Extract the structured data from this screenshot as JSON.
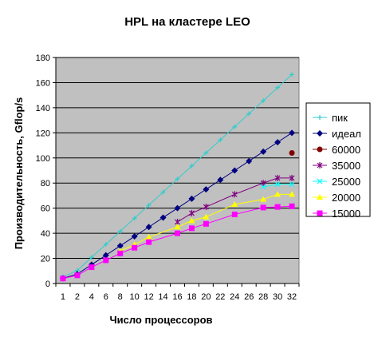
{
  "chart_data": {
    "type": "line",
    "title": "HPL на кластере LEO",
    "xlabel": "Число процессоров",
    "ylabel": "Производительность, Gflop/s",
    "ylim": [
      0,
      180
    ],
    "yticks": [
      0,
      20,
      40,
      60,
      80,
      100,
      120,
      140,
      160,
      180
    ],
    "categories": [
      "1",
      "2",
      "4",
      "6",
      "8",
      "10",
      "12",
      "14",
      "16",
      "18",
      "20",
      "22",
      "24",
      "26",
      "28",
      "30",
      "32"
    ],
    "x": [
      1,
      2,
      4,
      6,
      8,
      10,
      12,
      14,
      16,
      18,
      20,
      22,
      24,
      26,
      28,
      30,
      32
    ],
    "grid": true,
    "plot_background": "#c0c0c0",
    "legend_position": "right",
    "series": [
      {
        "name": "пик",
        "color": "#33cccc",
        "marker": "plus",
        "x": [
          1,
          2,
          4,
          6,
          8,
          10,
          12,
          14,
          16,
          18,
          20,
          22,
          24,
          26,
          28,
          30,
          32
        ],
        "values": [
          5.2,
          10.4,
          20.8,
          31.2,
          41.6,
          52,
          62.4,
          72.8,
          83.2,
          93.6,
          104,
          114.4,
          124.8,
          135.2,
          145.6,
          156,
          166.4
        ]
      },
      {
        "name": "идеал",
        "color": "#000080",
        "marker": "diamond",
        "x": [
          1,
          2,
          4,
          6,
          8,
          10,
          12,
          14,
          16,
          18,
          20,
          22,
          24,
          26,
          28,
          30,
          32
        ],
        "values": [
          4.1,
          7.5,
          15,
          22.5,
          30,
          37.5,
          45,
          52.5,
          60,
          67.5,
          75,
          82.5,
          90,
          97.5,
          105,
          112.5,
          120
        ]
      },
      {
        "name": "60000",
        "color": "#800000",
        "marker": "circle",
        "x": [
          32
        ],
        "values": [
          104
        ]
      },
      {
        "name": "35000",
        "color": "#800080",
        "marker": "star",
        "x": [
          16,
          18,
          20,
          24,
          28,
          30,
          32
        ],
        "values": [
          49,
          56,
          61,
          71,
          80,
          84,
          84
        ]
      },
      {
        "name": "25000",
        "color": "#00ffff",
        "marker": "x",
        "x": [
          28,
          30,
          32
        ],
        "values": [
          77,
          79,
          79
        ]
      },
      {
        "name": "20000",
        "color": "#ffff00",
        "marker": "triangle",
        "x": [
          8,
          10,
          12,
          16,
          18,
          20,
          24,
          28,
          30,
          32
        ],
        "values": [
          26,
          31,
          37,
          45,
          50,
          53,
          63,
          67,
          71,
          71
        ]
      },
      {
        "name": "15000",
        "color": "#ff00ff",
        "marker": "square",
        "x": [
          1,
          2,
          4,
          6,
          8,
          10,
          12,
          16,
          18,
          20,
          24,
          28,
          30,
          32
        ],
        "values": [
          4,
          6.5,
          13,
          18.5,
          24,
          28.5,
          33,
          40,
          44,
          47.5,
          55,
          60.5,
          61,
          61.5
        ]
      }
    ]
  }
}
